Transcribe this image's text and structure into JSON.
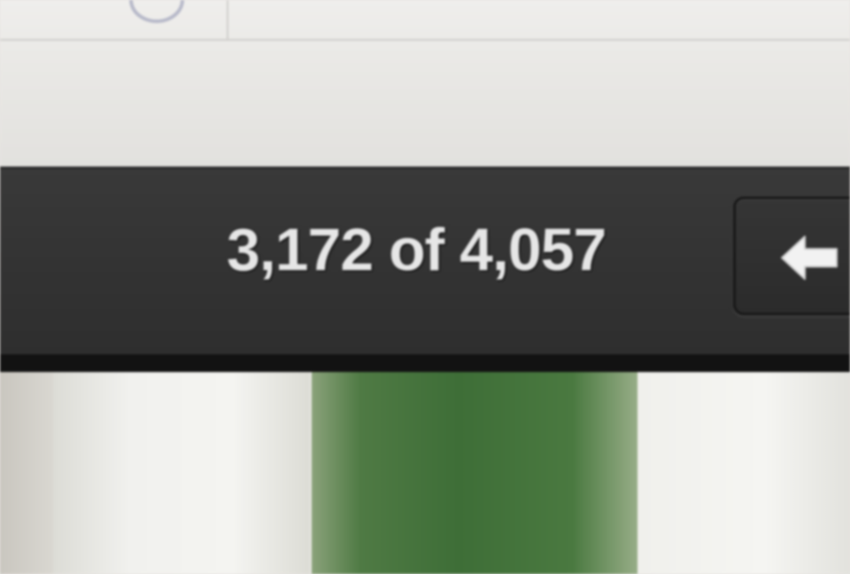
{
  "toolbar": {
    "icon": "circle-icon"
  },
  "status_bar": {
    "current": "3,172",
    "separator": "of",
    "total": "4,057",
    "prev_button_icon": "left-arrow-icon"
  },
  "colors": {
    "status_bar_bg": "#333333",
    "count_text": "#e6e6e6",
    "thumbnail_green": "#3e6e37"
  }
}
